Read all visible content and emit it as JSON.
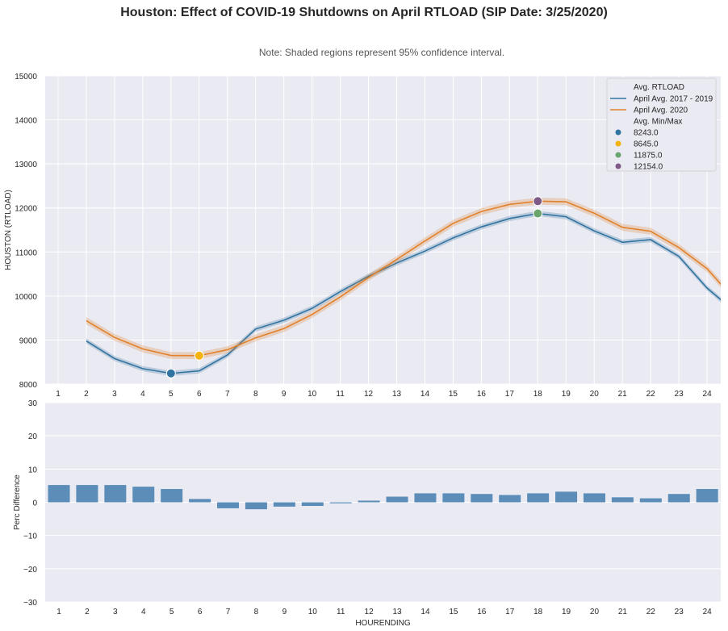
{
  "title": "Houston: Effect of COVID-19 Shutdowns on April RTLOAD (SIP Date: 3/25/2020)",
  "note": "Note: Shaded regions represent 95% confidence interval.",
  "chart_data": [
    {
      "type": "line",
      "ylabel": "HOUSTON (RTLOAD)",
      "xlabel": "",
      "ylim": [
        8000,
        15000
      ],
      "yticks": [
        "8000",
        "9000",
        "10000",
        "11000",
        "12000",
        "13000",
        "14000",
        "15000"
      ],
      "xticks": [
        "1",
        "2",
        "3",
        "4",
        "5",
        "6",
        "7",
        "8",
        "9",
        "10",
        "11",
        "12",
        "13",
        "14",
        "15",
        "16",
        "17",
        "18",
        "19",
        "20",
        "21",
        "22",
        "23",
        "24"
      ],
      "grid": true,
      "legend_position": "top-right",
      "legend": {
        "line_title": "Avg. RTLOAD",
        "marker_title": "Avg. Min/Max",
        "series_labels": [
          "April Avg. 2017 - 2019",
          "April Avg. 2020"
        ],
        "marker_labels": [
          "8243.0",
          "8645.0",
          "11875.0",
          "12154.0"
        ]
      },
      "x": [
        2,
        3,
        4,
        5,
        6,
        7,
        8,
        9,
        10,
        11,
        12,
        13,
        14,
        15,
        16,
        17,
        18,
        19,
        20,
        21,
        22,
        23,
        24,
        25
      ],
      "series": [
        {
          "name": "April Avg. 2017 - 2019",
          "color": "#3274a1",
          "ci": 60,
          "values": [
            8980,
            8580,
            8350,
            8243,
            8300,
            8660,
            9250,
            9450,
            9720,
            10100,
            10450,
            10750,
            11020,
            11320,
            11570,
            11760,
            11875,
            11800,
            11480,
            11220,
            11280,
            10900,
            10180,
            9640
          ]
        },
        {
          "name": "April Avg. 2020",
          "color": "#e1812c",
          "ci": 80,
          "values": [
            9440,
            9060,
            8800,
            8650,
            8645,
            8780,
            9050,
            9260,
            9580,
            9980,
            10420,
            10830,
            11250,
            11650,
            11920,
            12080,
            12154,
            12140,
            11880,
            11560,
            11470,
            11100,
            10620,
            9900
          ]
        }
      ],
      "markers": [
        {
          "label": "8243.0",
          "x": 5,
          "y": 8243,
          "color": "#3274a1"
        },
        {
          "label": "8645.0",
          "x": 6,
          "y": 8645,
          "color": "#f5b30f"
        },
        {
          "label": "11875.0",
          "x": 18,
          "y": 11875,
          "color": "#6aa56e"
        },
        {
          "label": "12154.0",
          "x": 18,
          "y": 12154,
          "color": "#7e5a86"
        }
      ]
    },
    {
      "type": "bar",
      "xlabel": "HOURENDING",
      "ylabel": "Perc Difference",
      "ylim": [
        -30,
        30
      ],
      "yticks": [
        "−30",
        "−20",
        "−10",
        "0",
        "10",
        "20",
        "30"
      ],
      "categories": [
        "1",
        "2",
        "3",
        "4",
        "5",
        "6",
        "7",
        "8",
        "9",
        "10",
        "11",
        "12",
        "13",
        "14",
        "15",
        "16",
        "17",
        "18",
        "19",
        "20",
        "21",
        "22",
        "23",
        "24"
      ],
      "values": [
        5.2,
        5.2,
        5.2,
        4.7,
        4.0,
        1.0,
        -1.8,
        -2.1,
        -1.3,
        -1.1,
        -0.3,
        0.5,
        1.7,
        2.7,
        2.7,
        2.5,
        2.2,
        2.7,
        3.2,
        2.7,
        1.5,
        1.2,
        2.5,
        4.0
      ],
      "color": "#5b8db8",
      "grid": true
    }
  ]
}
